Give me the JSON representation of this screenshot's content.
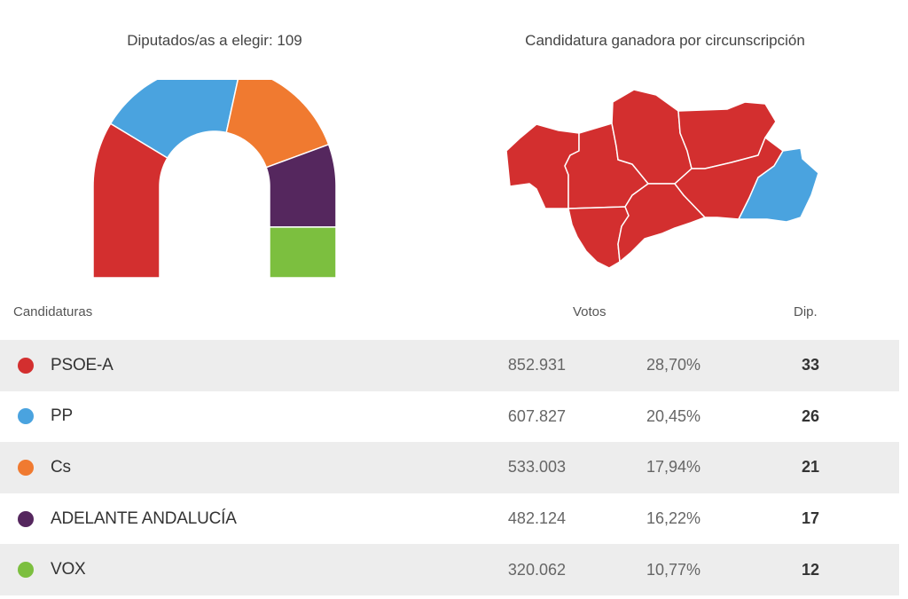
{
  "hemicycle": {
    "title": "Diputados/as a elegir: 109",
    "total_seats": 109
  },
  "map": {
    "title": "Candidatura ganadora por circunscripción",
    "colors": {
      "won_psoe": "#d32f2f",
      "won_pp": "#4aa3df"
    }
  },
  "table": {
    "headers": {
      "candidates": "Candidaturas",
      "votes": "Votos",
      "seats": "Dip."
    },
    "rows": [
      {
        "name": "PSOE-A",
        "votes": "852.931",
        "percent": "28,70%",
        "seats": "33",
        "color": "#d32f2f"
      },
      {
        "name": "PP",
        "votes": "607.827",
        "percent": "20,45%",
        "seats": "26",
        "color": "#4aa3df"
      },
      {
        "name": "Cs",
        "votes": "533.003",
        "percent": "17,94%",
        "seats": "21",
        "color": "#f07a30"
      },
      {
        "name": "ADELANTE ANDALUCÍA",
        "votes": "482.124",
        "percent": "16,22%",
        "seats": "17",
        "color": "#55275e"
      },
      {
        "name": "VOX",
        "votes": "320.062",
        "percent": "10,77%",
        "seats": "12",
        "color": "#7cbf3f"
      }
    ]
  },
  "chart_data": {
    "type": "pie",
    "title": "Diputados/as a elegir: 109",
    "categories": [
      "PSOE-A",
      "PP",
      "Cs",
      "ADELANTE ANDALUCÍA",
      "VOX"
    ],
    "values": [
      33,
      26,
      21,
      17,
      12
    ],
    "colors": [
      "#d32f2f",
      "#4aa3df",
      "#f07a30",
      "#55275e",
      "#7cbf3f"
    ]
  }
}
